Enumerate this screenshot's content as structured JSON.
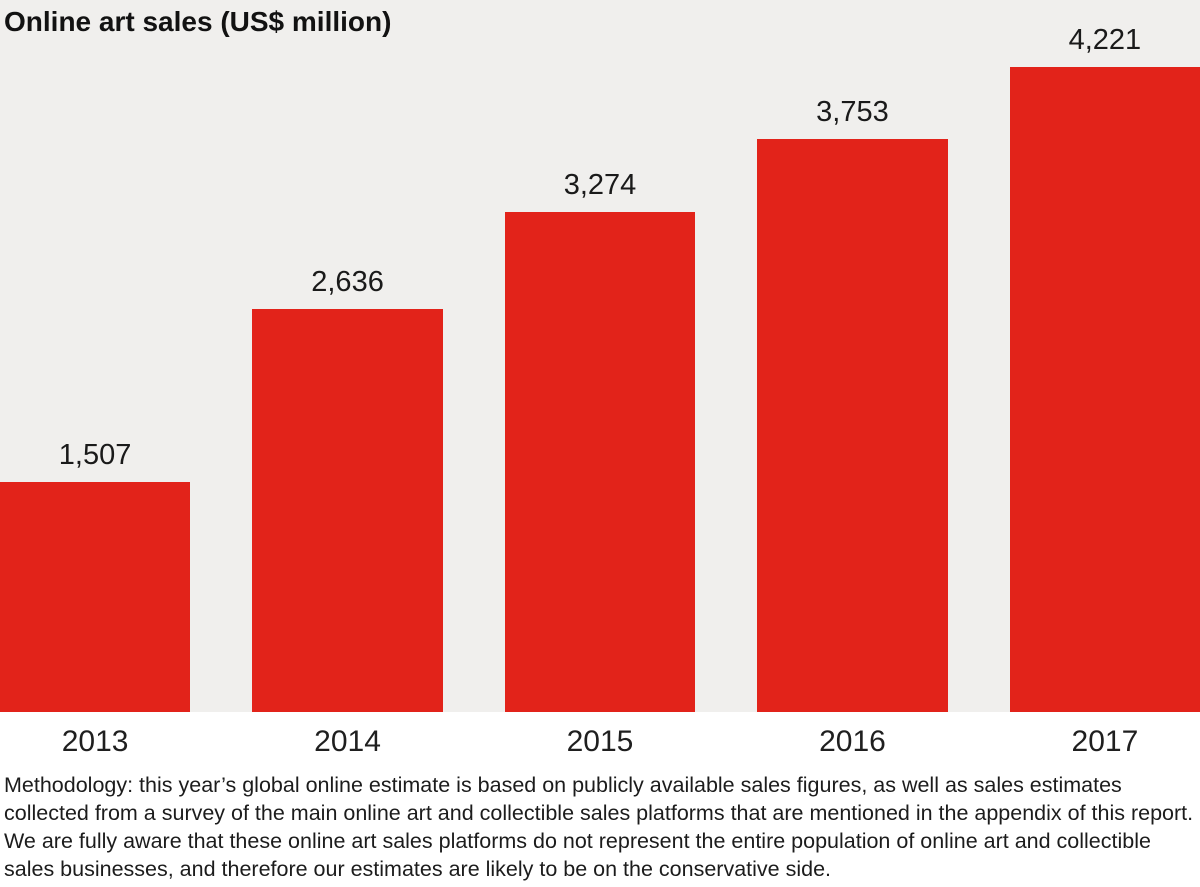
{
  "chart_data": {
    "type": "bar",
    "title": "Online art sales (US$ million)",
    "categories": [
      "2013",
      "2014",
      "2015",
      "2016",
      "2017"
    ],
    "values": [
      1507,
      2636,
      3274,
      3753,
      4221
    ],
    "value_labels": [
      "1,507",
      "2,636",
      "3,274",
      "3,753",
      "4,221"
    ],
    "xlabel": "",
    "ylabel": "Online art sales (US$ million)",
    "ylim": [
      0,
      4221
    ],
    "grid": false,
    "legend": "none",
    "bar_color": "#e2231a",
    "plot_background": "#f0efed"
  },
  "footnote": "Methodology: this year’s global online estimate is based on publicly available sales figures, as well as sales estimates collected from a survey of the main online art and collectible sales platforms that are mentioned in the appendix of this report. We are fully aware that these online art sales platforms do not represent the entire population of online art and collectible sales businesses, and therefore our estimates are likely to be on the conservative side."
}
